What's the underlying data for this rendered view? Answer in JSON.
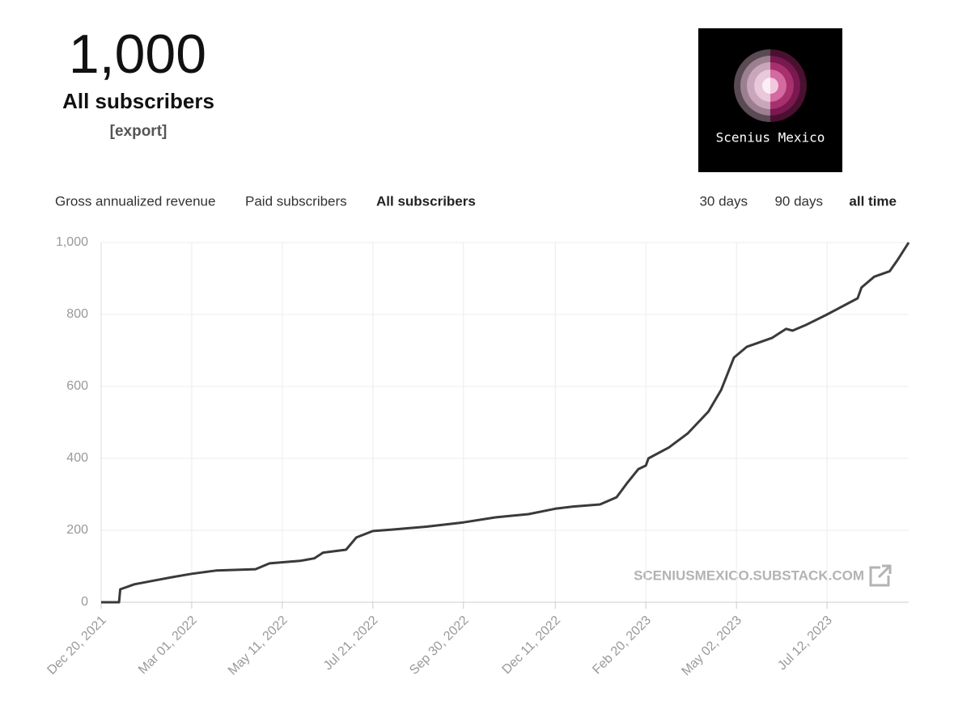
{
  "header": {
    "count": "1,000",
    "label": "All subscribers",
    "export": "[export]",
    "logo_text": "Scenius Mexico"
  },
  "tabs": {
    "metrics": [
      "Gross annualized revenue",
      "Paid subscribers",
      "All subscribers"
    ],
    "active_metric": 2,
    "ranges": [
      "30 days",
      "90 days",
      "all time"
    ],
    "active_range": 2
  },
  "watermark": "SCENIUSMEXICO.SUBSTACK.COM",
  "chart_data": {
    "type": "line",
    "color": "#3a3a3c",
    "grid": true,
    "x": [
      "2021-12-20",
      "2022-01-03",
      "2022-01-04",
      "2022-01-15",
      "2022-01-30",
      "2022-02-14",
      "2022-03-01",
      "2022-03-20",
      "2022-04-20",
      "2022-05-01",
      "2022-05-25",
      "2022-06-05",
      "2022-06-12",
      "2022-06-30",
      "2022-07-08",
      "2022-07-21",
      "2022-08-05",
      "2022-09-01",
      "2022-09-30",
      "2022-10-25",
      "2022-11-20",
      "2022-12-11",
      "2022-12-25",
      "2023-01-15",
      "2023-01-28",
      "2023-02-05",
      "2023-02-14",
      "2023-02-20",
      "2023-02-22",
      "2023-03-10",
      "2023-03-25",
      "2023-04-10",
      "2023-04-20",
      "2023-04-30",
      "2023-05-10",
      "2023-05-30",
      "2023-06-10",
      "2023-06-15",
      "2023-06-25",
      "2023-07-12",
      "2023-08-05",
      "2023-08-08",
      "2023-08-18",
      "2023-08-30",
      "2023-09-05",
      "2023-09-14"
    ],
    "values": [
      0,
      0,
      36,
      50,
      60,
      70,
      79,
      88,
      92,
      108,
      115,
      122,
      138,
      146,
      180,
      198,
      202,
      210,
      222,
      236,
      245,
      260,
      266,
      272,
      292,
      330,
      370,
      380,
      400,
      430,
      470,
      530,
      590,
      680,
      710,
      735,
      760,
      755,
      770,
      800,
      845,
      875,
      905,
      920,
      950,
      1000
    ],
    "xlim": [
      "2021-12-20",
      "2023-09-14"
    ],
    "xticks": [
      {
        "value": "2021-12-20",
        "label": "Dec 20, 2021"
      },
      {
        "value": "2022-03-01",
        "label": "Mar 01, 2022"
      },
      {
        "value": "2022-05-11",
        "label": "May 11, 2022"
      },
      {
        "value": "2022-07-21",
        "label": "Jul 21, 2022"
      },
      {
        "value": "2022-09-30",
        "label": "Sep 30, 2022"
      },
      {
        "value": "2022-12-11",
        "label": "Dec 11, 2022"
      },
      {
        "value": "2023-02-20",
        "label": "Feb 20, 2023"
      },
      {
        "value": "2023-05-02",
        "label": "May 02, 2023"
      },
      {
        "value": "2023-07-12",
        "label": "Jul 12, 2023"
      }
    ],
    "ylim": [
      0,
      1000
    ],
    "yticks": [
      0,
      200,
      400,
      600,
      800,
      {
        "value": 1000,
        "label": "1,000"
      }
    ]
  }
}
